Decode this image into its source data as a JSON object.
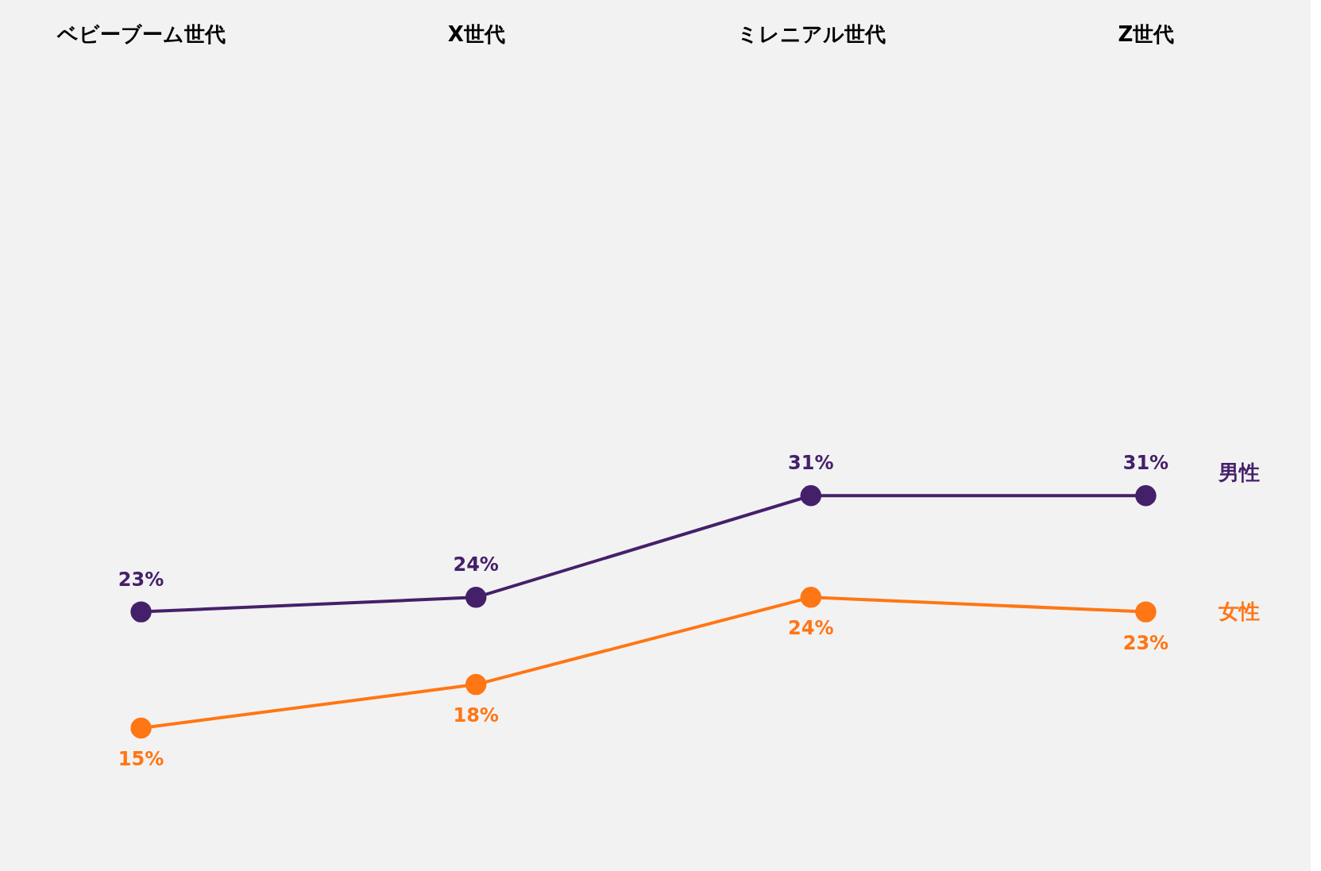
{
  "chart_data": {
    "type": "line",
    "categories": [
      "ベビーブーム世代",
      "X世代",
      "ミレニアル世代",
      "Z世代"
    ],
    "marker": "circle",
    "grid": false,
    "series": [
      {
        "name": "男性",
        "color": "#45206a",
        "values": [
          23,
          24,
          31,
          31
        ],
        "value_labels": [
          "23%",
          "24%",
          "31%",
          "31%"
        ]
      },
      {
        "name": "女性",
        "color": "#ff7614",
        "values": [
          15,
          18,
          24,
          23
        ],
        "value_labels": [
          "15%",
          "18%",
          "24%",
          "23%"
        ]
      }
    ]
  }
}
